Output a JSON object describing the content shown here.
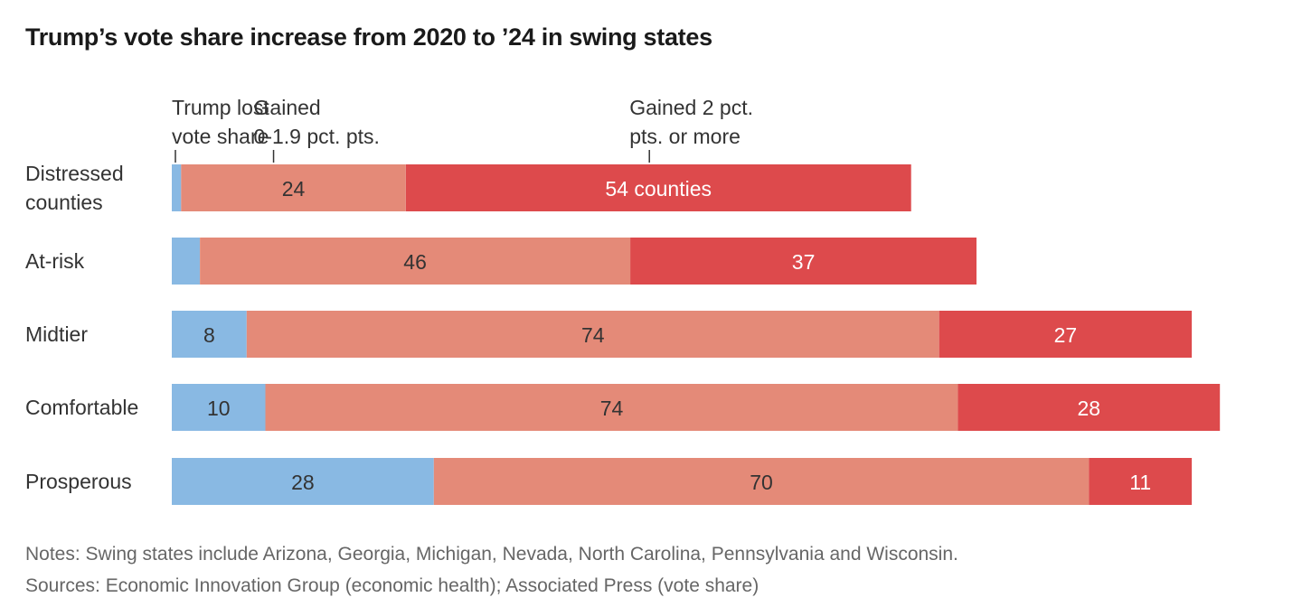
{
  "title": "Trump’s vote share increase from 2020 to ’24 in swing states",
  "notes": "Notes: Swing states include Arizona, Georgia, Michigan, Nevada, North Carolina, Pennsylvania and Wisconsin.",
  "sources": "Sources: Economic Innovation Group (economic health); Associated Press (vote share)",
  "chart_data": {
    "type": "bar",
    "orientation": "horizontal",
    "stacked": true,
    "title": "Trump’s vote share increase from 2020 to ’24 in swing states",
    "unit": "counties",
    "categories": [
      [
        "Distressed",
        "counties"
      ],
      [
        "At-risk"
      ],
      [
        "Midtier"
      ],
      [
        "Comfortable"
      ],
      [
        "Prosperous"
      ]
    ],
    "series": [
      {
        "name": "Trump lost vote share",
        "legend_lines": [
          "Trump lost",
          "vote share"
        ],
        "color": "#89b9e3",
        "label_color": "#333333",
        "values": [
          1,
          3,
          8,
          10,
          28
        ],
        "labels": [
          "",
          "",
          "8",
          "10",
          "28"
        ]
      },
      {
        "name": "Gained 0-1.9 pct. pts.",
        "legend_lines": [
          "Gained",
          "0-1.9 pct. pts."
        ],
        "color": "#e48a78",
        "label_color": "#333333",
        "values": [
          24,
          46,
          74,
          74,
          70
        ],
        "labels": [
          "24",
          "46",
          "74",
          "74",
          "70"
        ]
      },
      {
        "name": "Gained 2 pct. pts. or more",
        "legend_lines": [
          "Gained 2 pct.",
          "pts. or more"
        ],
        "color": "#dd4a4c",
        "label_color": "#ffffff",
        "values": [
          54,
          37,
          27,
          28,
          11
        ],
        "labels": [
          "54 counties",
          "37",
          "27",
          "28",
          "11"
        ]
      }
    ],
    "xlabel": "",
    "ylabel": "",
    "grid": false,
    "legend": "top, annotated above first bar"
  }
}
